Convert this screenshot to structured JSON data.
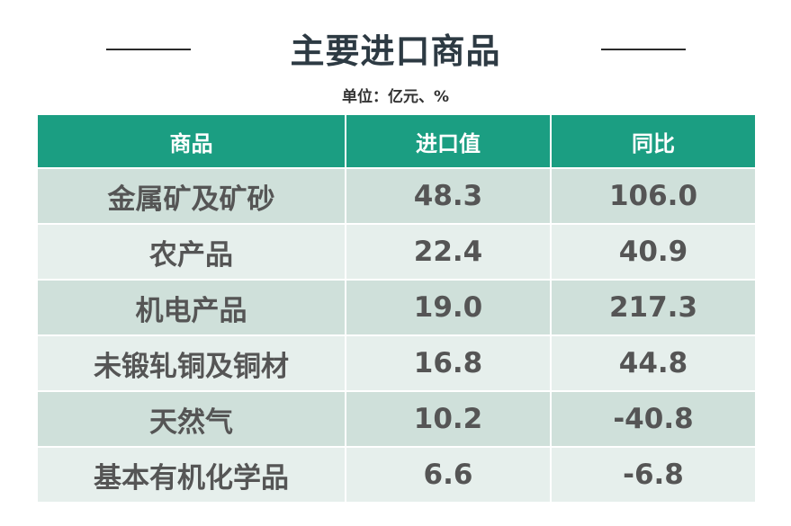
{
  "title": "主要进口商品",
  "unit_note": "单位：亿元、%",
  "colors": {
    "header_bg": "#1b9e82",
    "row_dark": "#cfe0da",
    "row_light": "#e6efec",
    "title": "#2d3a43"
  },
  "chart_data": {
    "type": "table",
    "title": "主要进口商品",
    "subtitle": "单位：亿元、%",
    "columns": [
      "商品",
      "进口值",
      "同比"
    ],
    "rows": [
      [
        "金属矿及矿砂",
        "48.3",
        "106.0"
      ],
      [
        "农产品",
        "22.4",
        "40.9"
      ],
      [
        "机电产品",
        "19.0",
        "217.3"
      ],
      [
        "未锻轧铜及铜材",
        "16.8",
        "44.8"
      ],
      [
        "天然气",
        "10.2",
        "-40.8"
      ],
      [
        "基本有机化学品",
        "6.6",
        "-6.8"
      ]
    ]
  }
}
